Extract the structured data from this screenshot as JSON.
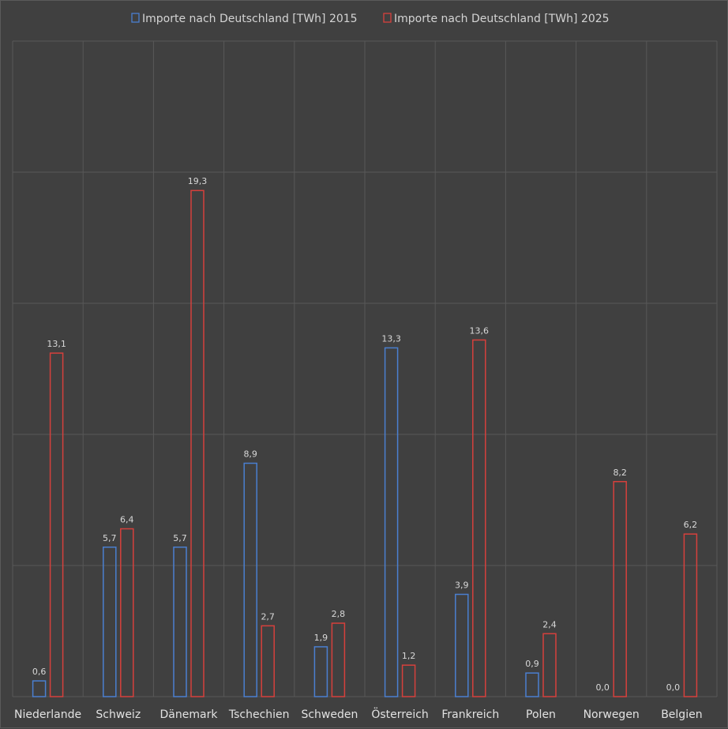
{
  "chart_data": {
    "type": "bar",
    "title": "",
    "xlabel": "",
    "ylabel": "",
    "ylim": [
      0,
      25
    ],
    "grid": true,
    "legend_position": "top",
    "categories": [
      "Niederlande",
      "Schweiz",
      "Dänemark",
      "Tschechien",
      "Schweden",
      "Österreich",
      "Frankreich",
      "Polen",
      "Norwegen",
      "Belgien"
    ],
    "series": [
      {
        "name": "Importe nach Deutschland [TWh] 2015",
        "color": "#4a7fd0",
        "values": [
          0.6,
          5.7,
          5.7,
          8.9,
          1.9,
          13.3,
          3.9,
          0.9,
          0.0,
          0.0
        ],
        "labels": [
          "0,6",
          "5,7",
          "5,7",
          "8,9",
          "1,9",
          "13,3",
          "3,9",
          "0,9",
          "0,0",
          "0,0"
        ]
      },
      {
        "name": "Importe nach Deutschland [TWh] 2025",
        "color": "#d6403c",
        "values": [
          13.1,
          6.4,
          19.3,
          2.7,
          2.8,
          1.2,
          13.6,
          2.4,
          8.2,
          6.2
        ],
        "labels": [
          "13,1",
          "6,4",
          "19,3",
          "2,7",
          "2,8",
          "1,2",
          "13,6",
          "2,4",
          "8,2",
          "6,2"
        ]
      }
    ]
  }
}
